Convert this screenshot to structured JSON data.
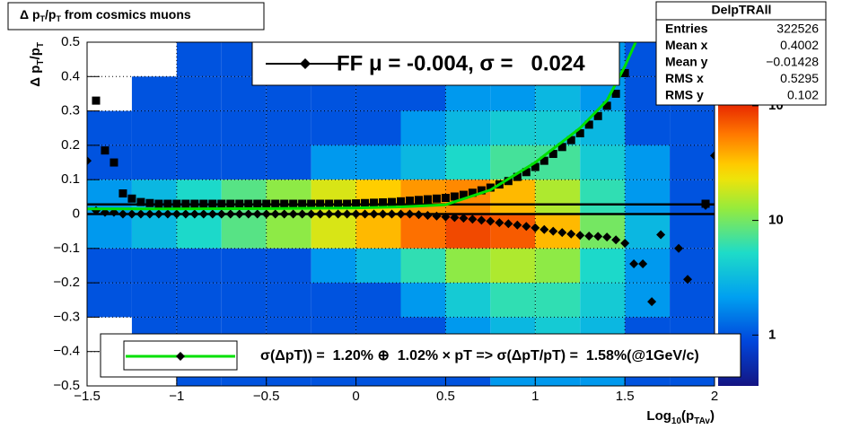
{
  "chart_data": {
    "type": "heatmap",
    "title_parts": [
      "Δ p",
      "T",
      "/p",
      "T",
      " from cosmics muons"
    ],
    "x_label_parts": [
      "Log",
      "10",
      "(p",
      "TAv",
      ")"
    ],
    "y_label_parts": [
      "Δ p",
      "T",
      "/p",
      "T"
    ],
    "xlim": [
      -1.5,
      2
    ],
    "xticks": [
      {
        "value": -1.5,
        "label": "−1.5"
      },
      {
        "value": -1,
        "label": "−1"
      },
      {
        "value": -0.5,
        "label": "−0.5"
      },
      0,
      0.5,
      1,
      1.5,
      2
    ],
    "ylim": [
      -0.5,
      0.5
    ],
    "yticks": [
      {
        "value": -0.5,
        "label": "−0.5"
      },
      {
        "value": -0.4,
        "label": "−0.4"
      },
      {
        "value": -0.3,
        "label": "−0.3"
      },
      {
        "value": -0.2,
        "label": "−0.2"
      },
      {
        "value": -0.1,
        "label": "−0.1"
      },
      0,
      0.1,
      0.2,
      0.3,
      0.4,
      0.5
    ],
    "grid": true,
    "heatmap": {
      "x_edges": [
        -1.5,
        -1.25,
        -1,
        -0.75,
        -0.5,
        -0.25,
        0,
        0.25,
        0.5,
        0.75,
        1,
        1.25,
        1.5,
        1.75,
        2
      ],
      "y_edges": [
        0.5,
        0.4,
        0.3,
        0.2,
        0.1,
        0,
        -0.1,
        -0.2,
        -0.3,
        -0.4,
        -0.5
      ],
      "counts": [
        [
          0,
          0,
          1,
          1,
          1,
          1,
          1,
          1,
          1,
          2,
          2,
          2,
          1,
          1
        ],
        [
          0,
          1,
          1,
          1,
          1,
          1,
          1,
          1,
          2,
          2,
          3,
          2,
          1,
          1
        ],
        [
          1,
          1,
          1,
          1,
          1,
          1,
          1,
          2,
          3,
          4,
          4,
          3,
          1,
          1
        ],
        [
          1,
          1,
          1,
          1,
          1,
          2,
          2,
          3,
          5,
          7,
          7,
          4,
          2,
          1
        ],
        [
          2,
          3,
          5,
          8,
          12,
          20,
          30,
          45,
          50,
          35,
          15,
          6,
          2,
          1
        ],
        [
          2,
          3,
          5,
          8,
          12,
          20,
          35,
          60,
          80,
          70,
          35,
          10,
          3,
          1
        ],
        [
          1,
          1,
          1,
          1,
          1,
          2,
          3,
          6,
          12,
          15,
          12,
          5,
          2,
          1
        ],
        [
          1,
          1,
          1,
          1,
          1,
          1,
          1,
          2,
          4,
          6,
          6,
          4,
          2,
          1
        ],
        [
          0,
          1,
          1,
          1,
          1,
          1,
          1,
          1,
          2,
          3,
          4,
          3,
          1,
          1
        ],
        [
          0,
          0,
          1,
          1,
          1,
          1,
          1,
          1,
          1,
          2,
          2,
          2,
          1,
          1
        ]
      ]
    },
    "zlim": [
      0.36,
      138
    ],
    "zscale": "log",
    "zticks": [
      1,
      10,
      {
        "value": 100,
        "label": "10²"
      }
    ],
    "hlines": [
      0.028,
      0
    ],
    "series": [
      {
        "name": "FF μ = -0.004, σ =   0.024",
        "type": "scatter",
        "marker": "diamond",
        "color": "#000000",
        "x": [
          -1.5,
          -1.45,
          -1.4,
          -1.35,
          -1.3,
          -1.25,
          -1.2,
          -1.15,
          -1.1,
          -1.05,
          -1,
          -0.95,
          -0.9,
          -0.85,
          -0.8,
          -0.75,
          -0.7,
          -0.65,
          -0.6,
          -0.55,
          -0.5,
          -0.45,
          -0.4,
          -0.35,
          -0.3,
          -0.25,
          -0.2,
          -0.15,
          -0.1,
          -0.05,
          0,
          0.05,
          0.1,
          0.15,
          0.2,
          0.25,
          0.3,
          0.35,
          0.4,
          0.45,
          0.5,
          0.55,
          0.6,
          0.65,
          0.7,
          0.75,
          0.8,
          0.85,
          0.9,
          0.95,
          1,
          1.05,
          1.1,
          1.15,
          1.2,
          1.25,
          1.3,
          1.35,
          1.4,
          1.45,
          1.5,
          1.55,
          1.6,
          1.65,
          1.7,
          1.8,
          1.85,
          1.95,
          2
        ],
        "values": [
          0.155,
          0.01,
          0.005,
          0.005,
          0,
          0,
          0,
          0,
          0,
          0,
          0,
          0,
          0,
          0,
          0,
          0,
          0,
          0,
          0,
          0,
          0,
          0,
          0,
          0,
          0,
          0,
          0,
          0,
          0,
          0,
          0,
          0,
          0,
          0,
          0,
          0,
          0,
          -0.002,
          -0.004,
          -0.006,
          -0.008,
          -0.01,
          -0.012,
          -0.015,
          -0.018,
          -0.021,
          -0.025,
          -0.028,
          -0.032,
          -0.036,
          -0.04,
          -0.045,
          -0.05,
          -0.054,
          -0.058,
          -0.062,
          -0.064,
          -0.065,
          -0.067,
          -0.075,
          -0.085,
          -0.145,
          -0.145,
          -0.255,
          -0.06,
          -0.1,
          -0.19,
          0.025,
          0.17
        ]
      },
      {
        "type": "scatter",
        "marker": "square",
        "color": "#000000",
        "x": [
          -1.45,
          -1.4,
          -1.35,
          -1.3,
          -1.25,
          -1.2,
          -1.15,
          -1.1,
          -1.05,
          -1,
          -0.95,
          -0.9,
          -0.85,
          -0.8,
          -0.75,
          -0.7,
          -0.65,
          -0.6,
          -0.55,
          -0.5,
          -0.45,
          -0.4,
          -0.35,
          -0.3,
          -0.25,
          -0.2,
          -0.15,
          -0.1,
          -0.05,
          0,
          0.05,
          0.1,
          0.15,
          0.2,
          0.25,
          0.3,
          0.35,
          0.4,
          0.45,
          0.5,
          0.55,
          0.6,
          0.65,
          0.7,
          0.75,
          0.8,
          0.85,
          0.9,
          0.95,
          1,
          1.05,
          1.1,
          1.15,
          1.2,
          1.25,
          1.3,
          1.35,
          1.4,
          1.45,
          1.5,
          1.95
        ],
        "values": [
          0.33,
          0.185,
          0.15,
          0.06,
          0.045,
          0.035,
          0.032,
          0.03,
          0.03,
          0.03,
          0.03,
          0.03,
          0.03,
          0.03,
          0.03,
          0.03,
          0.03,
          0.03,
          0.03,
          0.03,
          0.03,
          0.03,
          0.03,
          0.03,
          0.03,
          0.03,
          0.03,
          0.03,
          0.03,
          0.031,
          0.032,
          0.033,
          0.034,
          0.035,
          0.037,
          0.039,
          0.041,
          0.043,
          0.045,
          0.047,
          0.051,
          0.056,
          0.062,
          0.069,
          0.077,
          0.086,
          0.096,
          0.108,
          0.122,
          0.137,
          0.155,
          0.175,
          0.195,
          0.215,
          0.235,
          0.26,
          0.285,
          0.315,
          0.35,
          0.41,
          0.03
        ]
      },
      {
        "name": "σ(ΔpT)) =  1.20% ⊕  1.02% × pT => σ(ΔpT/pT) =  1.58%(@1GeV/c)",
        "type": "line",
        "color": "#00e000",
        "x": [
          -1.5,
          -1,
          -0.5,
          0,
          0.25,
          0.5,
          0.75,
          1,
          1.25,
          1.4,
          1.5,
          1.56
        ],
        "values": [
          0.015,
          0.015,
          0.016,
          0.018,
          0.021,
          0.027,
          0.07,
          0.15,
          0.25,
          0.33,
          0.43,
          0.5
        ]
      }
    ],
    "stats": {
      "title": "DelpTRAll",
      "rows": [
        [
          "Entries",
          "322526"
        ],
        [
          "Mean x",
          "0.4002"
        ],
        [
          "Mean y",
          "−0.01428"
        ],
        [
          "RMS x",
          "0.5295"
        ],
        [
          "RMS y",
          "0.102"
        ]
      ]
    }
  }
}
